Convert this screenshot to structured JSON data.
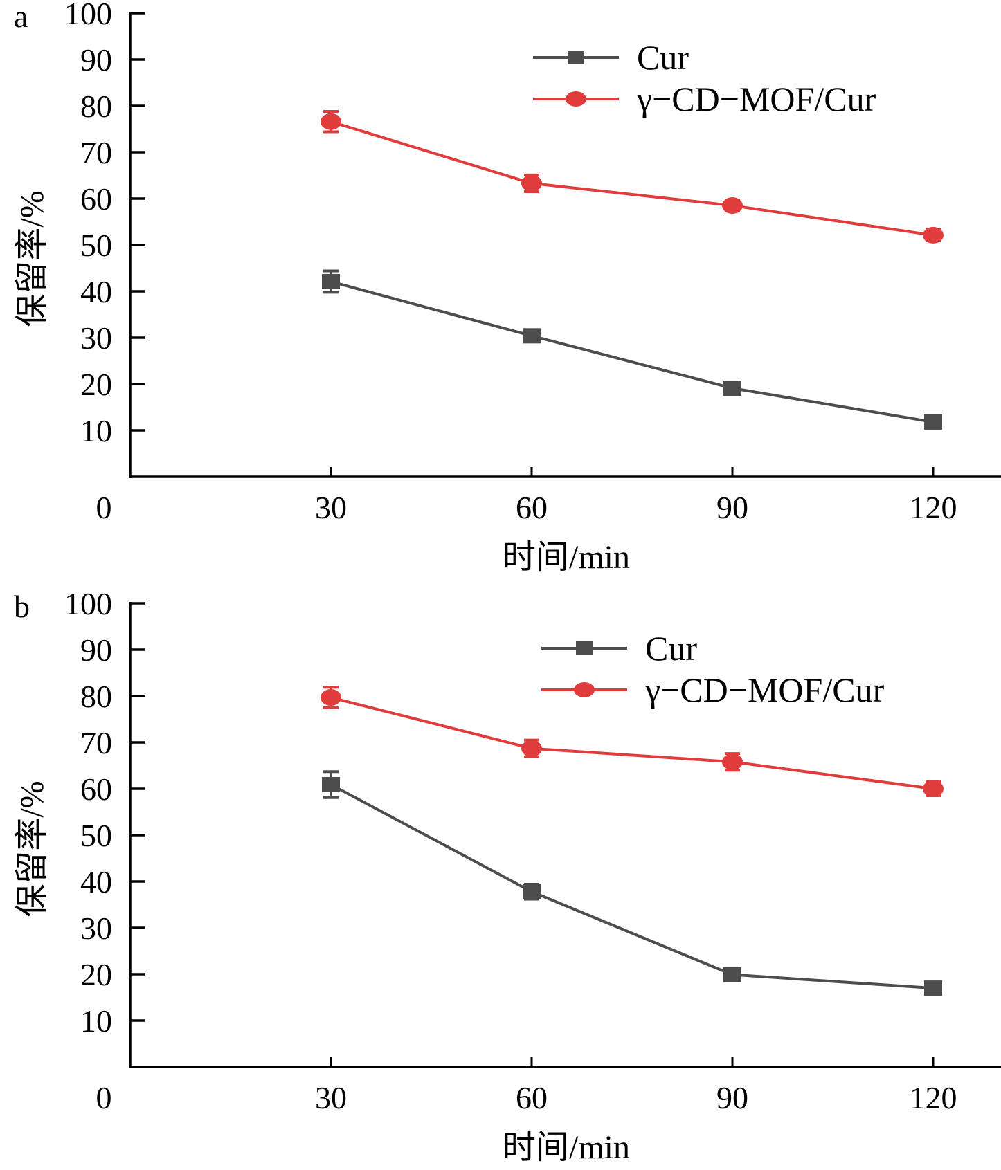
{
  "chart_data": [
    {
      "panel_label": "a",
      "type": "line",
      "xlabel": "时间/min",
      "ylabel": "保留率/%",
      "x": [
        30,
        60,
        90,
        120
      ],
      "xlim": [
        0,
        130
      ],
      "ylim": [
        0,
        100
      ],
      "xticks": [
        0,
        30,
        60,
        90,
        120
      ],
      "yticks": [
        10,
        20,
        30,
        40,
        50,
        60,
        70,
        80,
        90,
        100
      ],
      "origin_label": "0",
      "grid": false,
      "legend_position": "top-right",
      "series": [
        {
          "name": "Cur",
          "color": "#4d4d4d",
          "marker": "square",
          "values": [
            42.1,
            30.4,
            19.1,
            11.8
          ],
          "errors": [
            2.3,
            1.2,
            0.8,
            0.8
          ]
        },
        {
          "name": "γ−CD−MOF/Cur",
          "color": "#e03c3c",
          "marker": "circle",
          "values": [
            76.6,
            63.3,
            58.5,
            52.1
          ],
          "errors": [
            2.2,
            1.8,
            1.2,
            1.2
          ]
        }
      ]
    },
    {
      "panel_label": "b",
      "type": "line",
      "xlabel": "时间/min",
      "ylabel": "保留率/%",
      "x": [
        30,
        60,
        90,
        120
      ],
      "xlim": [
        0,
        130
      ],
      "ylim": [
        0,
        100
      ],
      "xticks": [
        0,
        30,
        60,
        90,
        120
      ],
      "yticks": [
        10,
        20,
        30,
        40,
        50,
        60,
        70,
        80,
        90,
        100
      ],
      "origin_label": "0",
      "grid": false,
      "legend_position": "top-right",
      "series": [
        {
          "name": "Cur",
          "color": "#4d4d4d",
          "marker": "square",
          "values": [
            60.9,
            37.8,
            19.9,
            17.0
          ],
          "errors": [
            2.8,
            1.6,
            0.6,
            0.6
          ]
        },
        {
          "name": "γ−CD−MOF/Cur",
          "color": "#e03c3c",
          "marker": "circle",
          "values": [
            79.7,
            68.7,
            65.8,
            60.0
          ],
          "errors": [
            2.2,
            1.8,
            1.8,
            1.5
          ]
        }
      ]
    }
  ]
}
